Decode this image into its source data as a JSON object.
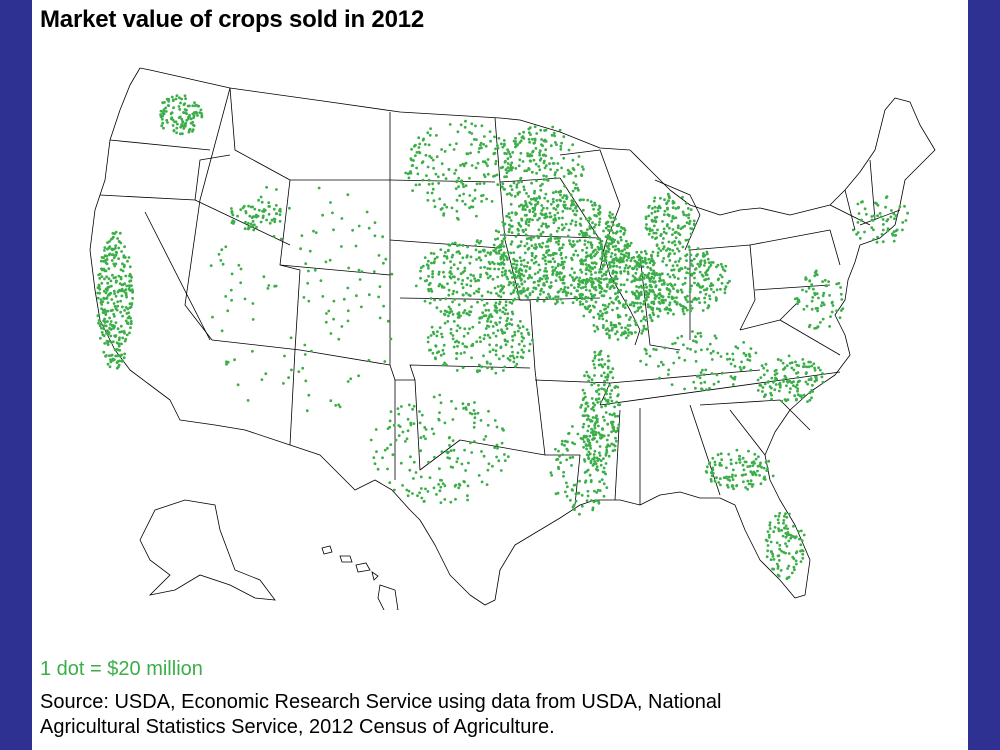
{
  "title": "Market value of crops sold in 2012",
  "legend": {
    "text": "1 dot = $20 million"
  },
  "source": {
    "line1": "Source: USDA, Economic Research Service using data from USDA, National",
    "line2": "Agricultural Statistics Service, 2012 Census of Agriculture."
  },
  "colors": {
    "background": "#2e3192",
    "dot": "#3cae49",
    "border": "#000000"
  }
}
